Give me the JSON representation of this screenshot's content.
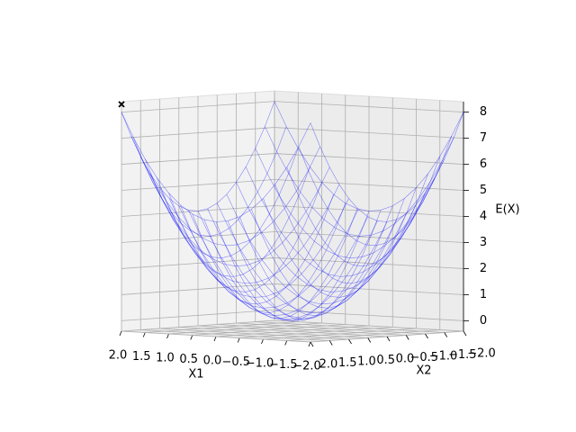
{
  "chart_data": {
    "type": "wireframe3d",
    "xlabel": "X1",
    "ylabel": "X2",
    "zlabel": "E(X)",
    "x": [
      -2,
      -1.75,
      -1.5,
      -1.25,
      -1,
      -0.75,
      -0.5,
      -0.25,
      0,
      0.25,
      0.5,
      0.75,
      1,
      1.25,
      1.5,
      1.75,
      2
    ],
    "y": [
      -2,
      -1.75,
      -1.5,
      -1.25,
      -1,
      -0.75,
      -0.5,
      -0.25,
      0,
      0.25,
      0.5,
      0.75,
      1,
      1.25,
      1.5,
      1.75,
      2
    ],
    "z": [
      [
        8,
        7.0625,
        6.25,
        5.5625,
        5,
        4.5625,
        4.25,
        4.0625,
        4,
        4.0625,
        4.25,
        4.5625,
        5,
        5.5625,
        6.25,
        7.0625,
        8
      ],
      [
        7.0625,
        6.125,
        5.3125,
        4.625,
        4.0625,
        3.625,
        3.3125,
        3.125,
        3.0625,
        3.125,
        3.3125,
        3.625,
        4.0625,
        4.625,
        5.3125,
        6.125,
        7.0625
      ],
      [
        6.25,
        5.3125,
        4.5,
        3.8125,
        3.25,
        2.8125,
        2.5,
        2.3125,
        2.25,
        2.3125,
        2.5,
        2.8125,
        3.25,
        3.8125,
        4.5,
        5.3125,
        6.25
      ],
      [
        5.5625,
        4.625,
        3.8125,
        3.125,
        2.5625,
        2.125,
        1.8125,
        1.625,
        1.5625,
        1.625,
        1.8125,
        2.125,
        2.5625,
        3.125,
        3.8125,
        4.625,
        5.5625
      ],
      [
        5,
        4.0625,
        3.25,
        2.5625,
        2,
        1.5625,
        1.25,
        1.0625,
        1,
        1.0625,
        1.25,
        1.5625,
        2,
        2.5625,
        3.25,
        4.0625,
        5
      ],
      [
        4.5625,
        3.625,
        2.8125,
        2.125,
        1.5625,
        1.125,
        0.8125,
        0.625,
        0.5625,
        0.625,
        0.8125,
        1.125,
        1.5625,
        2.125,
        2.8125,
        3.625,
        4.5625
      ],
      [
        4.25,
        3.3125,
        2.5,
        1.8125,
        1.25,
        0.8125,
        0.5,
        0.3125,
        0.25,
        0.3125,
        0.5,
        0.8125,
        1.25,
        1.8125,
        2.5,
        3.3125,
        4.25
      ],
      [
        4.0625,
        3.125,
        2.3125,
        1.625,
        1.0625,
        0.625,
        0.3125,
        0.125,
        0.0625,
        0.125,
        0.3125,
        0.625,
        1.0625,
        1.625,
        2.3125,
        3.125,
        4.0625
      ],
      [
        4,
        3.0625,
        2.25,
        1.5625,
        1,
        0.5625,
        0.25,
        0.0625,
        0,
        0.0625,
        0.25,
        0.5625,
        1,
        1.5625,
        2.25,
        3.0625,
        4
      ],
      [
        4.0625,
        3.125,
        2.3125,
        1.625,
        1.0625,
        0.625,
        0.3125,
        0.125,
        0.0625,
        0.125,
        0.3125,
        0.625,
        1.0625,
        1.625,
        2.3125,
        3.125,
        4.0625
      ],
      [
        4.25,
        3.3125,
        2.5,
        1.8125,
        1.25,
        0.8125,
        0.5,
        0.3125,
        0.25,
        0.3125,
        0.5,
        0.8125,
        1.25,
        1.8125,
        2.5,
        3.3125,
        4.25
      ],
      [
        4.5625,
        3.625,
        2.8125,
        2.125,
        1.5625,
        1.125,
        0.8125,
        0.625,
        0.5625,
        0.625,
        0.8125,
        1.125,
        1.5625,
        2.125,
        2.8125,
        3.625,
        4.5625
      ],
      [
        5,
        4.0625,
        3.25,
        2.5625,
        2,
        1.5625,
        1.25,
        1.0625,
        1,
        1.0625,
        1.25,
        1.5625,
        2,
        2.5625,
        3.25,
        4.0625,
        5
      ],
      [
        5.5625,
        4.625,
        3.8125,
        3.125,
        2.5625,
        2.125,
        1.8125,
        1.625,
        1.5625,
        1.625,
        1.8125,
        2.125,
        2.5625,
        3.125,
        3.8125,
        4.625,
        5.5625
      ],
      [
        6.25,
        5.3125,
        4.5,
        3.8125,
        3.25,
        2.8125,
        2.5,
        2.3125,
        2.25,
        2.3125,
        2.5,
        2.8125,
        3.25,
        3.8125,
        4.5,
        5.3125,
        6.25
      ],
      [
        7.0625,
        6.125,
        5.3125,
        4.625,
        4.0625,
        3.625,
        3.3125,
        3.125,
        3.0625,
        3.125,
        3.3125,
        3.625,
        4.0625,
        4.625,
        5.3125,
        6.125,
        7.0625
      ],
      [
        8,
        7.0625,
        6.25,
        5.5625,
        5,
        4.5625,
        4.25,
        4.0625,
        4,
        4.0625,
        4.25,
        4.5625,
        5,
        5.5625,
        6.25,
        7.0625,
        8
      ]
    ],
    "color": "#0000ff",
    "markers": {
      "x": [
        2
      ],
      "y": [
        2
      ],
      "z": [
        8.3
      ],
      "color": "#000000"
    },
    "xlim": [
      -2,
      2
    ],
    "ylim": [
      -2,
      2
    ],
    "zlim": [
      -0.4,
      8.4
    ],
    "xticks": [
      {
        "value": -2,
        "label": "−2.0"
      },
      {
        "value": -1.5,
        "label": "−1.5"
      },
      {
        "value": -1,
        "label": "−1.0"
      },
      {
        "value": -0.5,
        "label": "−0.5"
      },
      {
        "value": 0,
        "label": "0.0"
      },
      {
        "value": 0.5,
        "label": "0.5"
      },
      {
        "value": 1,
        "label": "1.0"
      },
      {
        "value": 1.5,
        "label": "1.5"
      },
      {
        "value": 2,
        "label": "2.0"
      }
    ],
    "yticks": [
      {
        "value": -2,
        "label": "−2.0"
      },
      {
        "value": -1.5,
        "label": "−1.5"
      },
      {
        "value": -1,
        "label": "−1.0"
      },
      {
        "value": -0.5,
        "label": "−0.5"
      },
      {
        "value": 0,
        "label": "0.0"
      },
      {
        "value": 0.5,
        "label": "0.5"
      },
      {
        "value": 1,
        "label": "1.0"
      },
      {
        "value": 1.5,
        "label": "1.5"
      },
      {
        "value": 2,
        "label": "2.0"
      }
    ],
    "zticks": [
      0,
      1,
      2,
      3,
      4,
      5,
      6,
      7,
      8
    ],
    "grid": true
  }
}
